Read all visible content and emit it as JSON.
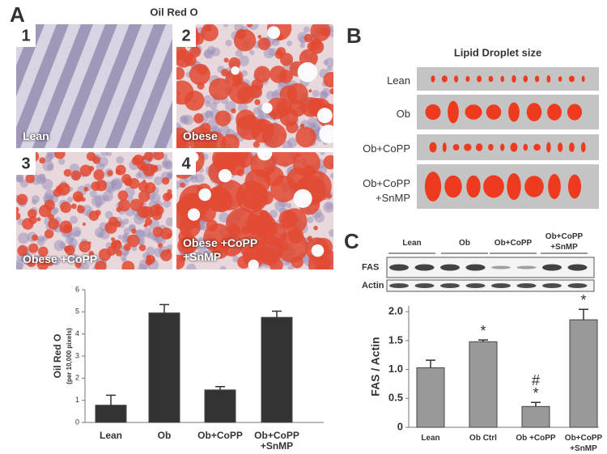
{
  "panels": {
    "a": {
      "letter": "A",
      "title": "Oil Red O",
      "images": [
        {
          "number": "1",
          "label": "Lean"
        },
        {
          "number": "2",
          "label": "Obese"
        },
        {
          "number": "3",
          "label": "Obese +CoPP"
        },
        {
          "number": "4",
          "label": "Obese +CoPP +SnMP"
        }
      ]
    },
    "b": {
      "letter": "B",
      "title": "Lipid Droplet size",
      "rows": [
        "Lean",
        "Ob",
        "Ob+CoPP",
        "Ob+CoPP +SnMP"
      ]
    },
    "c": {
      "letter": "C",
      "blot_groups": [
        "Lean",
        "Ob",
        "Ob+CoPP",
        "Ob+CoPP +SnMP"
      ],
      "blot_rows": [
        "FAS",
        "Actin"
      ]
    }
  },
  "chart_data": [
    {
      "type": "bar",
      "ylabel": "Oil Red O",
      "ylabel_sub": "(per 10,000 pixels)",
      "categories": [
        "Lean",
        "Ob",
        "Ob+CoPP",
        "Ob+CoPP +SnMP"
      ],
      "values": [
        0.78,
        4.95,
        1.47,
        4.75
      ],
      "errors": [
        0.45,
        0.38,
        0.15,
        0.28
      ],
      "color": "#333333",
      "ylim": [
        0,
        6
      ],
      "yticks": [
        0,
        1,
        2,
        3,
        4,
        5,
        6
      ]
    },
    {
      "type": "bar",
      "ylabel": "FAS / Actin",
      "categories": [
        "Lean",
        "Ob Ctrl",
        "Ob +CoPP",
        "Ob+CoPP +SnMP"
      ],
      "values": [
        1.03,
        1.48,
        0.36,
        1.86
      ],
      "errors": [
        0.13,
        0.03,
        0.07,
        0.18
      ],
      "annotations": [
        null,
        "*",
        [
          "#",
          "*"
        ],
        "*"
      ],
      "color": "#999999",
      "ylim": [
        0,
        2.1
      ],
      "yticks": [
        0,
        0.5,
        {
          "value": 1,
          "label": "1.0"
        },
        1.5,
        {
          "value": 2,
          "label": "2.0"
        }
      ]
    }
  ]
}
